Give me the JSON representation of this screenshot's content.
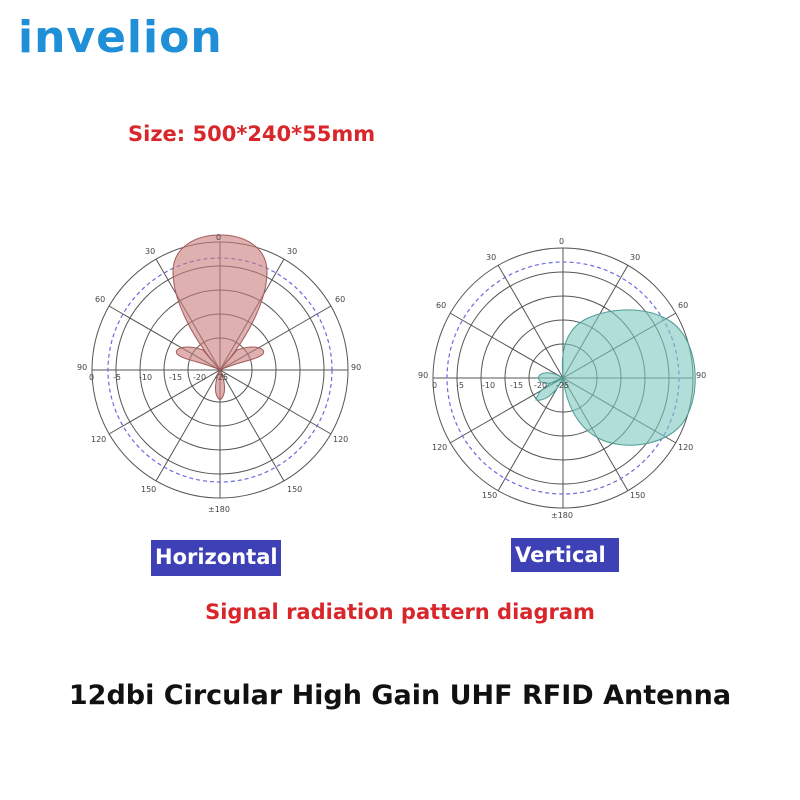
{
  "brand": "invelion",
  "size_label": "Size: 500*240*55mm",
  "colors": {
    "brand": "#1f8fd8",
    "red_text": "#d8262b",
    "tag_bg": "#3e40b5",
    "horizontal_lobe": "#c97b7b",
    "vertical_lobe": "#7fc8c0",
    "reference_circle": "#6b6bdc"
  },
  "diagrams": {
    "horizontal": {
      "tag": "Horizontal",
      "angles": [
        "0",
        "30",
        "30",
        "60",
        "60",
        "90",
        "90",
        "120",
        "120",
        "150",
        "150",
        "±180"
      ],
      "radial": [
        "0",
        "-5",
        "-10",
        "-15",
        "-20",
        "-25"
      ]
    },
    "vertical": {
      "tag": "Vertical",
      "angles": [
        "0",
        "30",
        "30",
        "60",
        "60",
        "90",
        "90",
        "120",
        "120",
        "150",
        "150",
        "±180"
      ],
      "radial": [
        "0",
        "-5",
        "-10",
        "-15",
        "-20",
        "-25"
      ]
    }
  },
  "caption_subtitle": "Signal radiation pattern diagram",
  "caption_title": "12dbi Circular High Gain UHF RFID Antenna"
}
